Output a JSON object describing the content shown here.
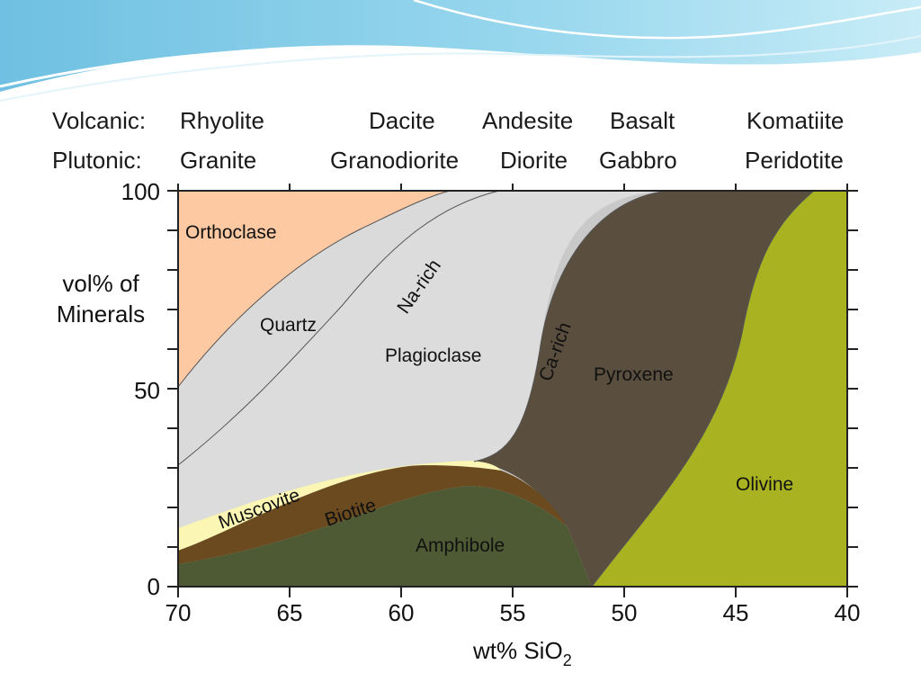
{
  "header": {
    "volcanic_label": "Volcanic:",
    "plutonic_label": "Plutonic:",
    "volcanic": [
      "Rhyolite",
      "Dacite",
      "Andesite",
      "Basalt",
      "Komatiite"
    ],
    "plutonic": [
      "Granite",
      "Granodiorite",
      "Diorite",
      "Gabbro",
      "Peridotite"
    ]
  },
  "axes": {
    "y_label_line1": "vol% of",
    "y_label_line2": "Minerals",
    "x_label": "wt% SiO",
    "x_label_sub": "2",
    "x_ticks": [
      "70",
      "65",
      "60",
      "55",
      "50",
      "45",
      "40"
    ],
    "y_ticks": [
      "100",
      "50",
      "0"
    ],
    "x_range": [
      70,
      40
    ],
    "y_range": [
      0,
      100
    ]
  },
  "regions": {
    "orthoclase": "Orthoclase",
    "quartz": "Quartz",
    "plagioclase": "Plagioclase",
    "na_rich": "Na-rich",
    "ca_rich": "Ca-rich",
    "pyroxene": "Pyroxene",
    "olivine": "Olivine",
    "muscovite": "Muscovite",
    "biotite": "Biotite",
    "amphibole": "Amphibole"
  },
  "colors": {
    "orthoclase": "#fcc9a2",
    "quartz": "#dadada",
    "plagioclase": "#c9c9c9",
    "muscovite": "#fbf6b3",
    "biotite": "#6a4a1e",
    "amphibole": "#4e5a33",
    "pyroxene": "#5a4e3e",
    "olivine": "#a9b322"
  }
}
